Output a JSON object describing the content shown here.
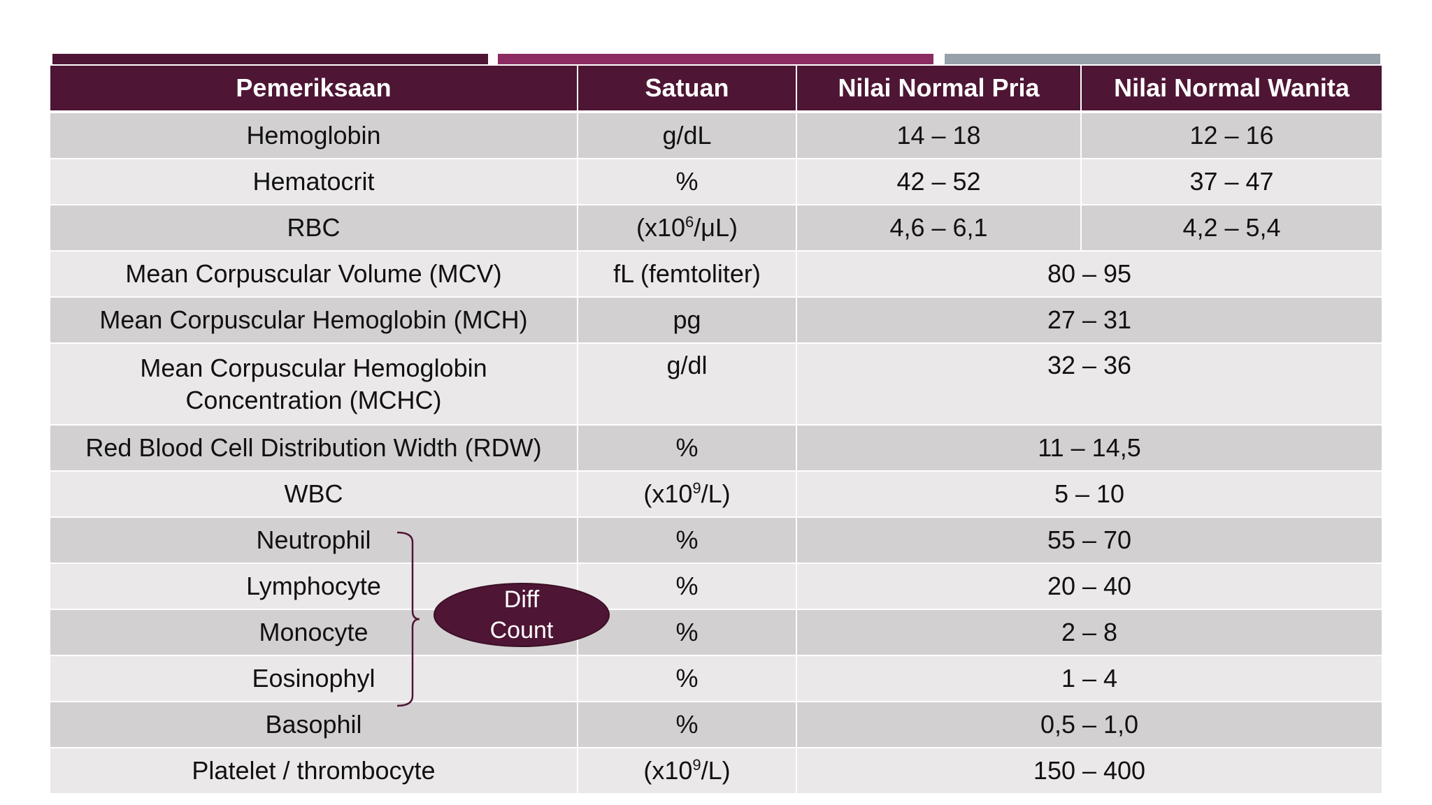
{
  "header": {
    "col1": "Pemeriksaan",
    "col2": "Satuan",
    "col3": "Nilai Normal Pria",
    "col4": "Nilai Normal Wanita"
  },
  "rows": [
    {
      "test": "Hemoglobin",
      "unit": "g/dL",
      "male": "14 – 18",
      "female": "12 – 16"
    },
    {
      "test": "Hematocrit",
      "unit": "%",
      "male": "42 – 52",
      "female": "37 – 47"
    },
    {
      "test": "RBC",
      "unit_prefix": "(x10",
      "unit_sup": "6",
      "unit_suffix": "/μL)",
      "male": "4,6 – 6,1",
      "female": "4,2 – 5,4"
    },
    {
      "test": "Mean Corpuscular Volume (MCV)",
      "unit": "fL (femtoliter)",
      "range": "80 – 95"
    },
    {
      "test": "Mean Corpuscular Hemoglobin (MCH)",
      "unit": "pg",
      "range": "27 – 31"
    },
    {
      "test_line1": "Mean Corpuscular Hemoglobin",
      "test_line2": "Concentration (MCHC)",
      "unit": "g/dl",
      "range": "32 – 36"
    },
    {
      "test": "Red Blood Cell Distribution Width (RDW)",
      "unit": "%",
      "range": "11 – 14,5"
    },
    {
      "test": "WBC",
      "unit_prefix": "(x10",
      "unit_sup": "9",
      "unit_suffix": "/L)",
      "range": "5 – 10"
    },
    {
      "test": "Neutrophil",
      "unit": "%",
      "range": "55 – 70"
    },
    {
      "test": "Lymphocyte",
      "unit": "%",
      "range": "20 – 40"
    },
    {
      "test": "Monocyte",
      "unit": "%",
      "range": "2 – 8"
    },
    {
      "test": "Eosinophyl",
      "unit": "%",
      "range": "1 – 4"
    },
    {
      "test": "Basophil",
      "unit": "%",
      "range": "0,5 – 1,0"
    },
    {
      "test": "Platelet / thrombocyte",
      "unit_prefix": "(x10",
      "unit_sup": "9",
      "unit_suffix": "/L)",
      "range": "150 – 400"
    }
  ],
  "diff_count": {
    "line1": "Diff",
    "line2": "Count"
  },
  "colors": {
    "header_bg": "#4e1634",
    "accent_magenta": "#8c2c63",
    "accent_gray": "#96a1a9",
    "row_dark": "#d3d0d1",
    "row_light": "#ebe8e9"
  }
}
